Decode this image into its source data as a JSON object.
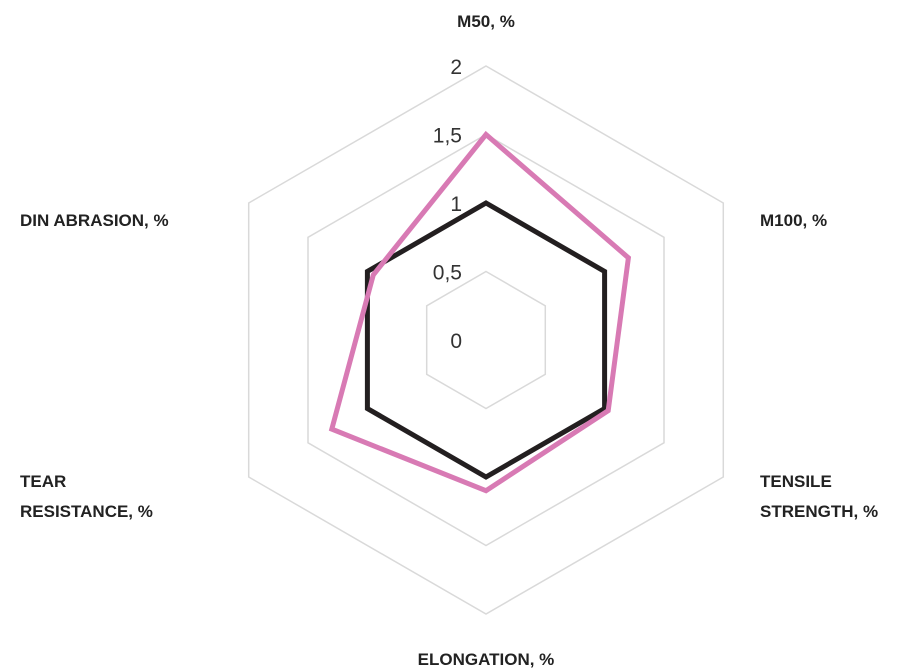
{
  "chart_data": {
    "type": "radar",
    "axes": [
      {
        "lines": [
          "M50, %"
        ]
      },
      {
        "lines": [
          "M100, %"
        ]
      },
      {
        "lines": [
          "TENSILE",
          "STRENGTH, %"
        ]
      },
      {
        "lines": [
          "ELONGATION, %"
        ]
      },
      {
        "lines": [
          "TEAR",
          "RESISTANCE, %"
        ]
      },
      {
        "lines": [
          "DIN ABRASION, %"
        ]
      }
    ],
    "tick_labels": [
      "0",
      "0,5",
      "1",
      "1,5",
      "2"
    ],
    "range": [
      0,
      2
    ],
    "grid": true,
    "series": [
      {
        "color": "#231f20",
        "values": [
          1,
          1,
          1,
          1,
          1,
          1
        ]
      },
      {
        "color": "#d87ab4",
        "values": [
          1.5,
          1.2,
          1.03,
          1.1,
          1.3,
          0.95
        ]
      }
    ],
    "colors": {
      "grid": "#d9d9d9"
    }
  }
}
